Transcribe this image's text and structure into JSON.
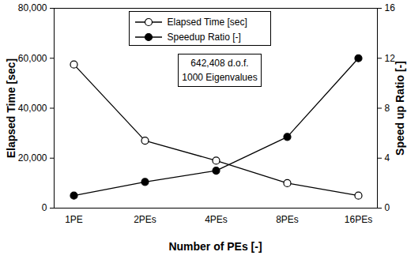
{
  "chart_data": {
    "type": "line",
    "xlabel": "Number of PEs [-]",
    "ylabel": "Elapsed Time [sec]",
    "y2label": "Speed up Ratio [-]",
    "categories": [
      "1PE",
      "2PEs",
      "4PEs",
      "8PEs",
      "16PEs"
    ],
    "series": [
      {
        "name": "Elapsed Time [sec]",
        "color": "#000000",
        "marker": "circle-open",
        "values": [
          57500,
          27000,
          19000,
          10000,
          5000
        ]
      },
      {
        "name": "Speedup Ratio [-]",
        "color": "#000000",
        "marker": "circle-filled",
        "axis": "y2",
        "values": [
          1.0,
          2.1,
          3.0,
          5.7,
          12.0
        ]
      }
    ],
    "ylim": [
      0,
      80000
    ],
    "yticks": [
      0,
      {
        "value": 20000,
        "label": "20,000"
      },
      {
        "value": 40000,
        "label": "40,000"
      },
      {
        "value": 60000,
        "label": "60,000"
      },
      {
        "value": 80000,
        "label": "80,000"
      }
    ],
    "y2lim": [
      0,
      16
    ],
    "y2ticks": [
      0,
      4,
      8,
      12,
      16
    ],
    "annotations": [
      "642,408 d.o.f.",
      "1000 Eigenvalues"
    ],
    "legend": "top",
    "grid": false
  }
}
